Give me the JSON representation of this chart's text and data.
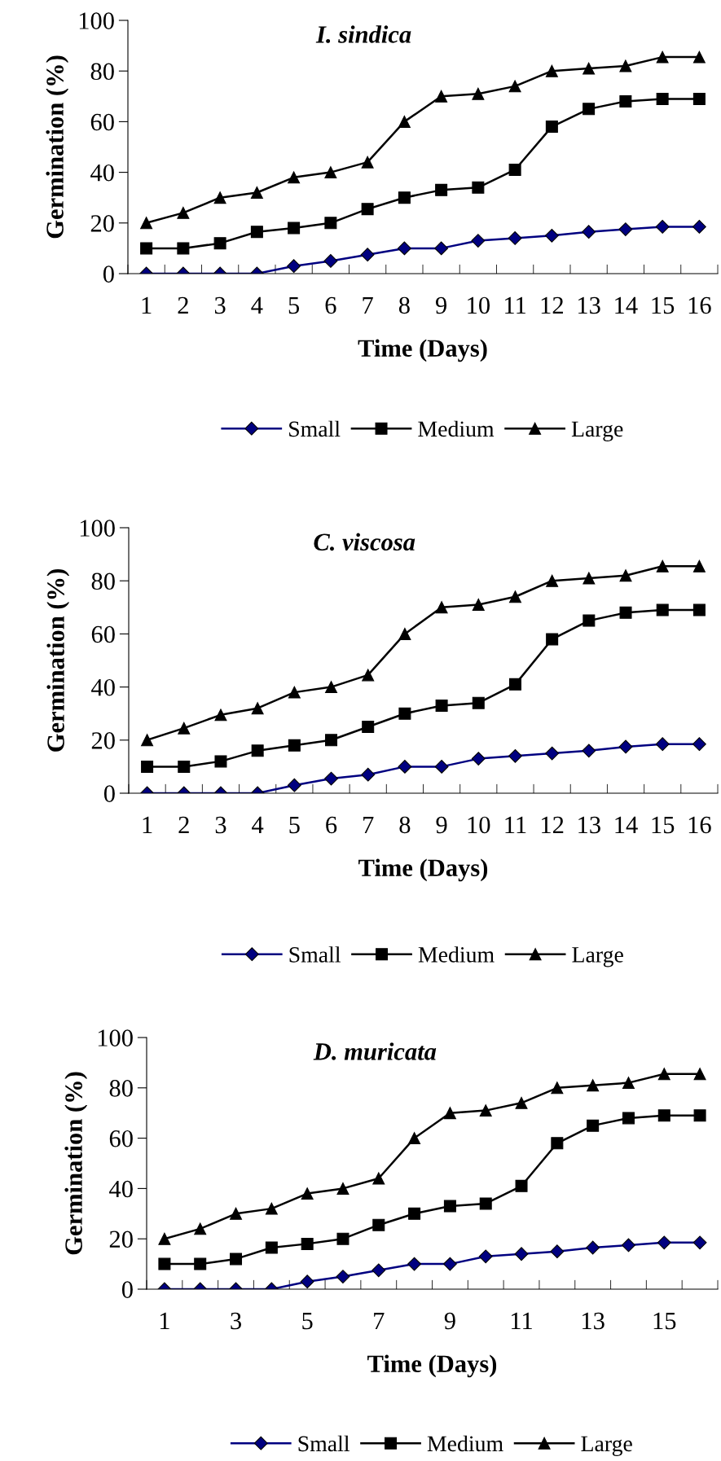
{
  "chart_data": [
    {
      "type": "line",
      "title": "I. sindica",
      "xlabel": "Time (Days)",
      "ylabel": "Germination (%)",
      "categories": [
        "1",
        "2",
        "3",
        "4",
        "5",
        "6",
        "7",
        "8",
        "9",
        "10",
        "11",
        "12",
        "13",
        "14",
        "15",
        "16"
      ],
      "ylim": [
        0,
        100
      ],
      "yticks": [
        0,
        20,
        40,
        60,
        80,
        100
      ],
      "grid": false,
      "legend": "bottom",
      "series": [
        {
          "name": "Small",
          "color": "#000080",
          "marker": "diamond",
          "values": [
            0,
            0,
            0,
            0,
            3,
            5,
            7.5,
            10,
            10,
            13,
            14,
            15,
            16.5,
            17.5,
            18.5,
            18.5
          ]
        },
        {
          "name": "Medium",
          "color": "#000000",
          "marker": "square",
          "values": [
            10,
            10,
            12,
            16.5,
            18,
            20,
            25.5,
            30,
            33,
            34,
            41,
            58,
            65,
            68,
            69,
            69
          ]
        },
        {
          "name": "Large",
          "color": "#000000",
          "marker": "triangle",
          "values": [
            20,
            24,
            30,
            32,
            38,
            40,
            44,
            60,
            70,
            71,
            74,
            80,
            81,
            82,
            85.5,
            85.5
          ]
        }
      ]
    },
    {
      "type": "line",
      "title": "C. viscosa",
      "xlabel": "Time (Days)",
      "ylabel": "Germination (%)",
      "categories": [
        "1",
        "2",
        "3",
        "4",
        "5",
        "6",
        "7",
        "8",
        "9",
        "10",
        "11",
        "12",
        "13",
        "14",
        "15",
        "16"
      ],
      "ylim": [
        0,
        100
      ],
      "yticks": [
        0,
        20,
        40,
        60,
        80,
        100
      ],
      "grid": false,
      "legend": "bottom",
      "series": [
        {
          "name": "Small",
          "color": "#000080",
          "marker": "diamond",
          "values": [
            0,
            0,
            0,
            0,
            3,
            5.5,
            7,
            10,
            10,
            13,
            14,
            15,
            16,
            17.5,
            18.5,
            18.5
          ]
        },
        {
          "name": "Medium",
          "color": "#000000",
          "marker": "square",
          "values": [
            10,
            10,
            12,
            16,
            18,
            20,
            25,
            30,
            33,
            34,
            41,
            58,
            65,
            68,
            69,
            69
          ]
        },
        {
          "name": "Large",
          "color": "#000000",
          "marker": "triangle",
          "values": [
            20,
            24.5,
            29.5,
            32,
            38,
            40,
            44.5,
            60,
            70,
            71,
            74,
            80,
            81,
            82,
            85.5,
            85.5
          ]
        }
      ]
    },
    {
      "type": "line",
      "title": "D. muricata",
      "xlabel": "Time (Days)",
      "ylabel": "Germination (%)",
      "categories": [
        "1",
        null,
        "3",
        null,
        "5",
        null,
        "7",
        null,
        "9",
        null,
        "11",
        null,
        "13",
        null,
        "15",
        null
      ],
      "ylim": [
        0,
        100
      ],
      "yticks": [
        0,
        20,
        40,
        60,
        80,
        100
      ],
      "grid": false,
      "legend": "bottom",
      "series": [
        {
          "name": "Small",
          "color": "#000080",
          "marker": "diamond",
          "values": [
            0,
            0,
            0,
            0,
            3,
            5,
            7.5,
            10,
            10,
            13,
            14,
            15,
            16.5,
            17.5,
            18.5,
            18.5
          ]
        },
        {
          "name": "Medium",
          "color": "#000000",
          "marker": "square",
          "values": [
            10,
            10,
            12,
            16.5,
            18,
            20,
            25.5,
            30,
            33,
            34,
            41,
            58,
            65,
            68,
            69,
            69
          ]
        },
        {
          "name": "Large",
          "color": "#000000",
          "marker": "triangle",
          "values": [
            20,
            24,
            30,
            32,
            38,
            40,
            44,
            60,
            70,
            71,
            74,
            80,
            81,
            82,
            85.5,
            85.5
          ]
        }
      ]
    }
  ]
}
